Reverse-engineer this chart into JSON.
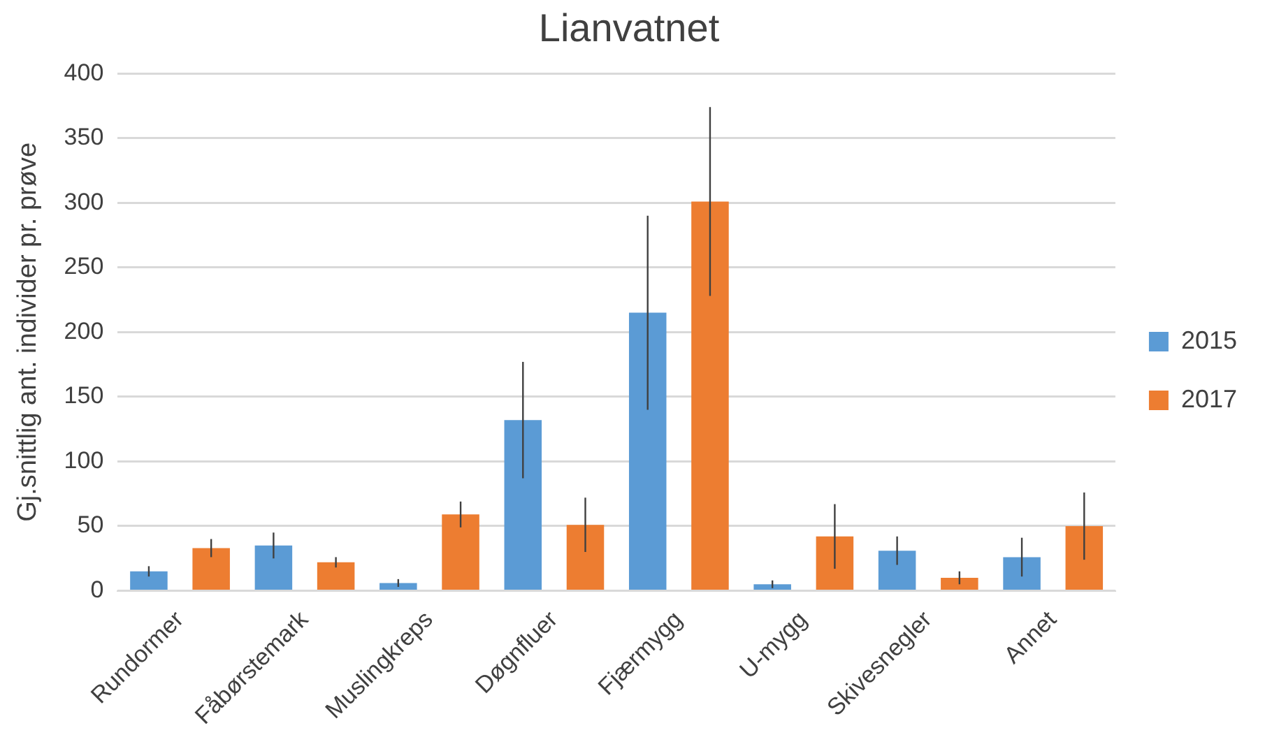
{
  "chart_data": {
    "type": "bar",
    "title": "Lianvatnet",
    "ylabel": "Gj.snittlig ant. individer pr. prøve",
    "categories": [
      "Rundormer",
      "Fåbørstemark",
      "Muslingkreps",
      "Døgnfluer",
      "Fjærmygg",
      "U-mygg",
      "Skivesnegler",
      "Annet"
    ],
    "series": [
      {
        "name": "2015",
        "color": "#5b9bd5",
        "values": [
          15,
          35,
          6,
          132,
          215,
          5,
          31,
          26
        ],
        "errors": [
          4,
          10,
          3,
          45,
          75,
          3,
          11,
          15
        ]
      },
      {
        "name": "2017",
        "color": "#ed7d31",
        "values": [
          33,
          22,
          59,
          51,
          301,
          42,
          10,
          50
        ],
        "errors": [
          7,
          4,
          10,
          21,
          73,
          25,
          5,
          26
        ]
      }
    ],
    "ylim": [
      0,
      400
    ],
    "yticks": [
      0,
      50,
      100,
      150,
      200,
      250,
      300,
      350,
      400
    ],
    "grid": "y",
    "legend": "right"
  }
}
